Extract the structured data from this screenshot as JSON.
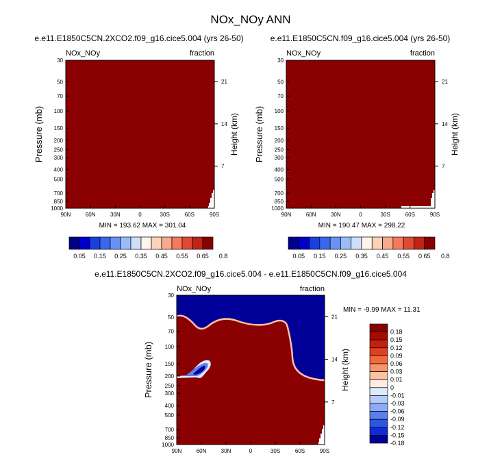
{
  "page": {
    "title": "NOx_NOy ANN"
  },
  "colors": {
    "field": "#8b0000",
    "negative_field": "#000099",
    "scale_top": [
      "#00008b",
      "#0000cd",
      "#1a3fe0",
      "#3a66f0",
      "#6a92f5",
      "#9bbcf8",
      "#cde0fb",
      "#fff4ec",
      "#fcd2b8",
      "#fba98c",
      "#f57a5c",
      "#e04a32",
      "#bf2415",
      "#8b0000"
    ],
    "scale_diff": [
      "#8b0000",
      "#a30d00",
      "#c4200c",
      "#e0401f",
      "#f06a3c",
      "#f9956a",
      "#fdc3a0",
      "#feece0",
      "#dde9ff",
      "#b5ccfa",
      "#8aabf5",
      "#5b80ee",
      "#2f55e4",
      "#0f2ad6",
      "#000099"
    ]
  },
  "chart_data": [
    {
      "type": "heatmap",
      "panel": "top-left",
      "title": "e.e11.E1850C5CN.2XCO2.f09_g16.cice5.004 (yrs 26-50)",
      "left_string": "NOx_NOy",
      "right_string": "fraction",
      "ylabel": "Pressure (mb)",
      "y2label": "Height (km)",
      "x_ticks": [
        "90N",
        "60N",
        "30N",
        "0",
        "30S",
        "60S",
        "90S"
      ],
      "y_ticks": [
        "30",
        "50",
        "70",
        "100",
        "150",
        "200",
        "250",
        "300",
        "400",
        "500",
        "700",
        "850",
        "1000"
      ],
      "y2_ticks": [
        "21",
        "14",
        "7"
      ],
      "stats": "MIN = 193.62   MAX = 301.04",
      "colorbar_labels": [
        "0.05",
        "0.15",
        "0.25",
        "0.35",
        "0.45",
        "0.55",
        "0.65",
        "0.8"
      ],
      "field_value": "all values above top contour level"
    },
    {
      "type": "heatmap",
      "panel": "top-right",
      "title": "e.e11.E1850C5CN.f09_g16.cice5.004 (yrs 26-50)",
      "left_string": "NOx_NOy",
      "right_string": "fraction",
      "ylabel": "Pressure (mb)",
      "y2label": "Height (km)",
      "x_ticks": [
        "90N",
        "60N",
        "30N",
        "0",
        "30S",
        "60S",
        "90S"
      ],
      "y_ticks": [
        "30",
        "50",
        "70",
        "100",
        "150",
        "200",
        "250",
        "300",
        "400",
        "500",
        "700",
        "850",
        "1000"
      ],
      "y2_ticks": [
        "21",
        "14",
        "7"
      ],
      "stats": "MIN = 190.47   MAX = 298.22",
      "colorbar_labels": [
        "0.05",
        "0.15",
        "0.25",
        "0.35",
        "0.45",
        "0.55",
        "0.65",
        "0.8"
      ],
      "field_value": "all values above top contour level"
    },
    {
      "type": "heatmap",
      "panel": "bottom-difference",
      "title": "e.e11.E1850C5CN.2XCO2.f09_g16.cice5.004 - e.e11.E1850C5CN.f09_g16.cice5.004",
      "left_string": "NOx_NOy",
      "right_string": "fraction",
      "ylabel": "Pressure (mb)",
      "y2label": "Height (km)",
      "x_ticks": [
        "90N",
        "60N",
        "30N",
        "0",
        "30S",
        "60S",
        "90S"
      ],
      "y_ticks": [
        "30",
        "50",
        "70",
        "100",
        "150",
        "200",
        "250",
        "300",
        "400",
        "500",
        "700",
        "850",
        "1000"
      ],
      "y2_ticks": [
        "21",
        "14",
        "7"
      ],
      "stats": "MIN =  -9.99   MAX = 11.31",
      "colorbar_labels": [
        "0.18",
        "0.15",
        "0.12",
        "0.09",
        "0.06",
        "0.03",
        "0.01",
        "0",
        "-0.01",
        "-0.03",
        "-0.06",
        "-0.09",
        "-0.12",
        "-0.15",
        "-0.18"
      ],
      "boundary": {
        "description": "upper region (approx. 30-50 mb, and 30-215 mb south of ~50S) negative, below positive",
        "negative_blob": {
          "lat": "60N-45N",
          "pressure_mb": [
            150,
            200
          ]
        }
      }
    }
  ]
}
